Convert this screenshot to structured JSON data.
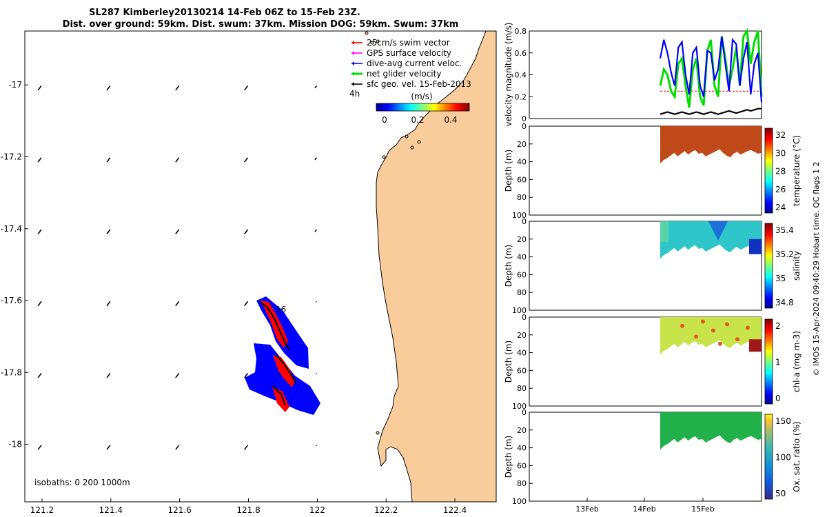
{
  "title": {
    "line1": "SL287 Kimberley20130214 14-Feb 06Z to 15-Feb 23Z.",
    "line2": "Dist. over ground: 59km. Dist. swum: 37km. Mission DOG: 59km. Swum: 37km"
  },
  "colors": {
    "land": "#f9cc9c",
    "blue": "#0000ff",
    "red": "#ff0000",
    "green": "#00dd00",
    "black": "#000000",
    "magenta": "#ff00ff"
  },
  "chart_data": [
    {
      "type": "scatter",
      "name": "map",
      "xlim": [
        121.15,
        122.52
      ],
      "ylim": [
        -18.16,
        -16.85
      ],
      "x_ticks": [
        "121.2",
        "121.4",
        "121.6",
        "121.8",
        "122",
        "122.2",
        "122.4"
      ],
      "x_tick_values": [
        121.2,
        121.4,
        121.6,
        121.8,
        122.0,
        122.2,
        122.4
      ],
      "y_ticks": [
        "-17",
        "-17.2",
        "-17.4",
        "-17.6",
        "-17.8",
        "-18"
      ],
      "y_tick_values": [
        -17.0,
        -17.2,
        -17.4,
        -17.6,
        -17.8,
        -18.0
      ],
      "vector_lon": [
        121.19,
        121.39,
        121.59,
        121.79,
        121.99
      ],
      "vector_lat": [
        -17.01,
        -17.21,
        -17.41,
        -17.61,
        -17.81,
        -18.01
      ],
      "legend": [
        {
          "label": "25cm/s swim vector",
          "color": "#ff0000"
        },
        {
          "label": "GPS surface velocity",
          "color": "#ff00ff"
        },
        {
          "label": "dive-avg current veloc.",
          "color": "#0000ff"
        },
        {
          "label": "net glider velocity",
          "color": "#00dd00"
        },
        {
          "label": "sfc geo. vel. 15-Feb-2013",
          "color": "#000000"
        }
      ],
      "legend_note": "4h",
      "colorbar": {
        "label": "(m/s)",
        "ticks": [
          "0",
          "0.2",
          "0.4"
        ]
      },
      "day_label": "16",
      "isobaths_label": "isobaths: 0   200  1000m"
    },
    {
      "type": "line",
      "name": "velocity",
      "ylabel": "velocity magnitude (m/s)",
      "ylim": [
        0,
        0.8
      ],
      "y_ticks": [
        "0",
        "0.2",
        "0.4",
        "0.6",
        "0.8"
      ],
      "series": [
        {
          "name": "dive-avg current veloc.",
          "color": "#0000ff",
          "values": [
            0.55,
            0.72,
            0.6,
            0.42,
            0.3,
            0.65,
            0.7,
            0.4,
            0.22,
            0.6,
            0.65,
            0.3,
            0.2,
            0.62,
            0.6,
            0.35,
            0.45,
            0.75,
            0.5,
            0.25,
            0.72,
            0.68,
            0.3,
            0.55,
            0.7,
            0.22,
            0.5,
            0.6,
            0.15
          ]
        },
        {
          "name": "net glider velocity",
          "color": "#00dd00",
          "values": [
            0.3,
            0.45,
            0.4,
            0.25,
            0.2,
            0.5,
            0.55,
            0.3,
            0.1,
            0.45,
            0.55,
            0.2,
            0.12,
            0.62,
            0.72,
            0.3,
            0.2,
            0.75,
            0.55,
            0.3,
            0.45,
            0.65,
            0.3,
            0.75,
            0.82,
            0.5,
            0.7,
            0.8,
            0.2
          ]
        },
        {
          "name": "sfc geo. vel.",
          "color": "#000000",
          "values": [
            0.04,
            0.05,
            0.06,
            0.05,
            0.04,
            0.05,
            0.06,
            0.05,
            0.04,
            0.05,
            0.06,
            0.05,
            0.04,
            0.05,
            0.06,
            0.05,
            0.04,
            0.05,
            0.06,
            0.07,
            0.06,
            0.05,
            0.06,
            0.07,
            0.08,
            0.07,
            0.08,
            0.09,
            0.09
          ]
        },
        {
          "name": "25cm/s swim vector",
          "color": "#ff0000",
          "values": [
            0.25,
            0.25,
            0.25,
            0.25,
            0.25,
            0.25,
            0.25,
            0.25,
            0.25,
            0.25,
            0.25,
            0.25,
            0.25,
            0.25,
            0.25,
            0.25,
            0.25,
            0.25,
            0.25,
            0.25,
            0.25,
            0.25,
            0.25,
            0.25,
            0.25,
            0.25,
            0.25,
            0.25,
            0.25
          ]
        }
      ]
    },
    {
      "type": "heatmap",
      "name": "temperature",
      "ylabel": "Depth (m)",
      "cbar_label": "temperature (°C)",
      "cbar_ticks": [
        "24",
        "26",
        "28",
        "30",
        "32"
      ],
      "ylim": [
        100,
        0
      ],
      "y_ticks": [
        "0",
        "20",
        "40",
        "60",
        "80",
        "100"
      ],
      "fill": "#c04a1a"
    },
    {
      "type": "heatmap",
      "name": "salinity",
      "ylabel": "Depth (m)",
      "cbar_label": "salinity",
      "cbar_ticks": [
        "34.8",
        "35",
        "35.2",
        "35.4"
      ],
      "ylim": [
        100,
        0
      ],
      "y_ticks": [
        "0",
        "20",
        "40",
        "60",
        "80",
        "100"
      ],
      "fill": "#2ec6c8"
    },
    {
      "type": "heatmap",
      "name": "chl-a",
      "ylabel": "Depth (m)",
      "cbar_label": "chl-a (mg m-3)",
      "cbar_ticks": [
        "0",
        "1",
        "2"
      ],
      "ylim": [
        100,
        0
      ],
      "y_ticks": [
        "0",
        "20",
        "40",
        "60",
        "80",
        "100"
      ],
      "fill": "#c9e34a"
    },
    {
      "type": "heatmap",
      "name": "oxygen",
      "ylabel": "Depth (m)",
      "cbar_label": "Ox. sat. ratio (%)",
      "cbar_ticks": [
        "50",
        "100",
        "150"
      ],
      "ylim": [
        100,
        0
      ],
      "y_ticks": [
        "0",
        "20",
        "40",
        "60",
        "80",
        "100"
      ],
      "fill": "#22b04a"
    }
  ],
  "time_axis": {
    "ticks": [
      "13Feb",
      "14Feb",
      "15Feb"
    ]
  },
  "credit": "© IMOS 15-Apr-2024 09:40:29 Hobart time. QC flags 1  2"
}
